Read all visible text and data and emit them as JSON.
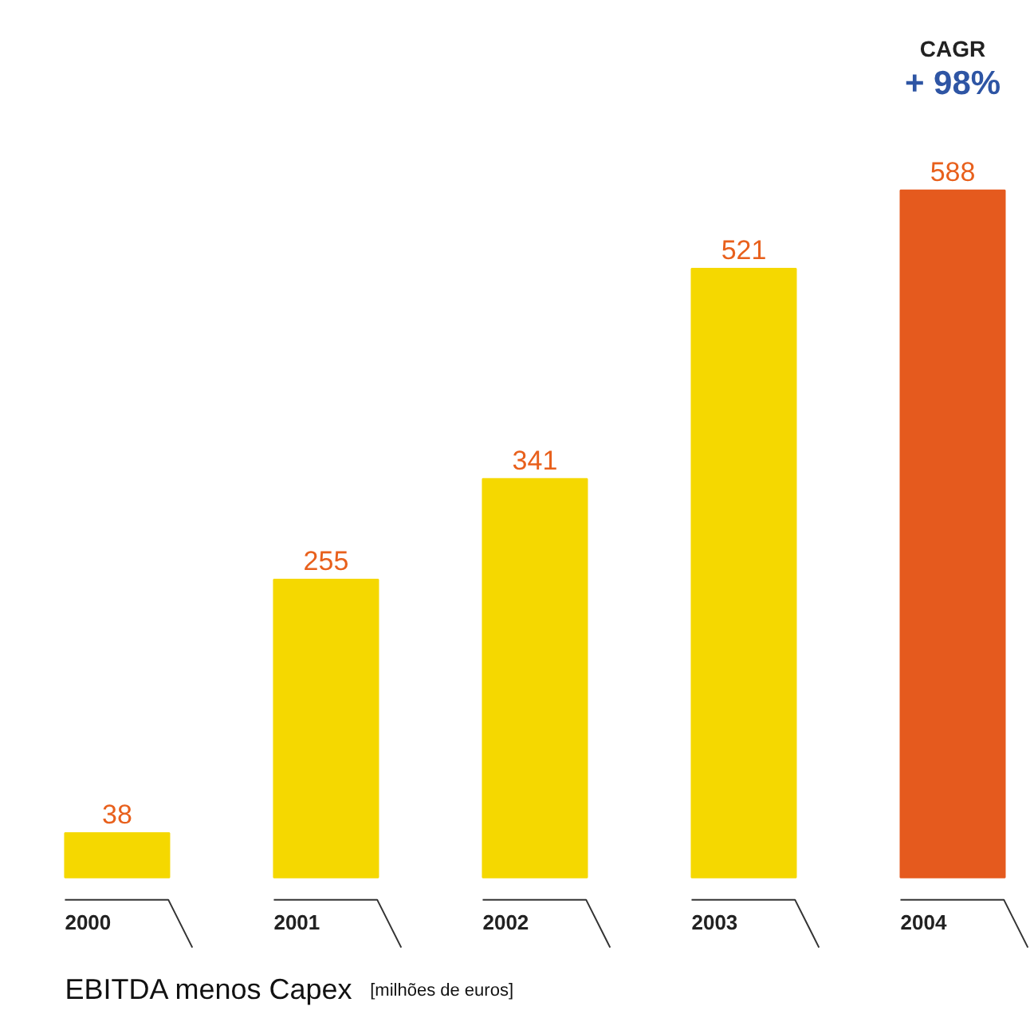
{
  "chart_data": {
    "type": "bar",
    "title": "EBITDA menos Capex",
    "subtitle": "[milhões de euros]",
    "categories": [
      "2000",
      "2001",
      "2002",
      "2003",
      "2004"
    ],
    "values": [
      38,
      255,
      341,
      521,
      588
    ],
    "colors": [
      "#f5d800",
      "#f5d800",
      "#f5d800",
      "#f5d800",
      "#e55a1e"
    ],
    "data_labels": true,
    "annotations": [
      "CAGR",
      "+ 98%"
    ],
    "grid": false
  }
}
